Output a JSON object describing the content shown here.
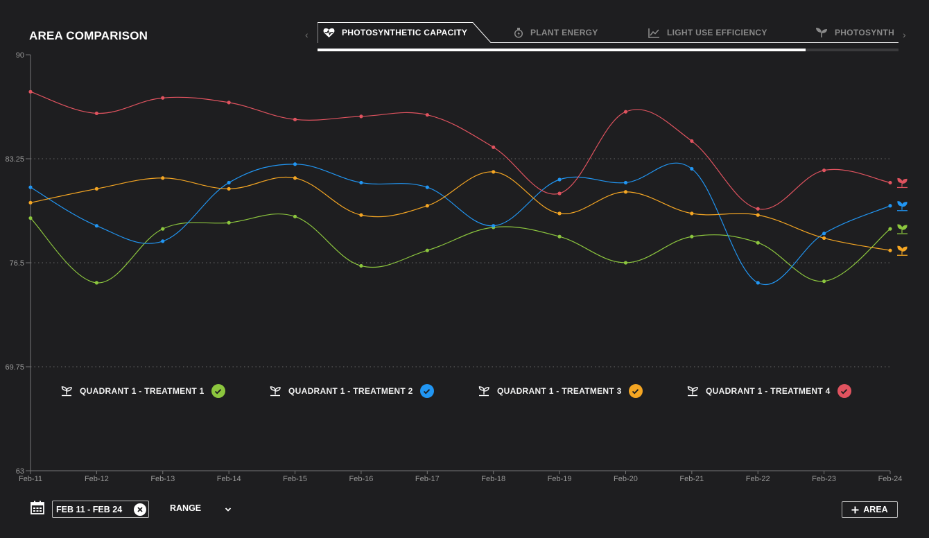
{
  "page": {
    "title": "AREA COMPARISON"
  },
  "tabs": [
    {
      "label": "PHOTOSYNTHETIC CAPACITY",
      "icon": "heart-pulse-icon",
      "active": true
    },
    {
      "label": "PLANT ENERGY",
      "icon": "energy-drop-icon",
      "active": false
    },
    {
      "label": "LIGHT USE EFFICIENCY",
      "icon": "line-chart-icon",
      "active": false
    },
    {
      "label": "PHOTOSYNTH",
      "icon": "sprout-icon",
      "active": false
    }
  ],
  "tab_scroll_progress": 0.84,
  "chart_data": {
    "type": "line",
    "x": [
      "Feb-11",
      "Feb-12",
      "Feb-13",
      "Feb-14",
      "Feb-15",
      "Feb-16",
      "Feb-17",
      "Feb-18",
      "Feb-19",
      "Feb-20",
      "Feb-21",
      "Feb-22",
      "Feb-23",
      "Feb-24"
    ],
    "ylim": [
      63,
      90
    ],
    "yticks": [
      "90",
      "83.25",
      "76.5",
      "69.75",
      "63"
    ],
    "grid": "dotted horizontal",
    "legend_position": "bottom",
    "series": [
      {
        "name": "QUADRANT 1 - TREATMENT 1",
        "color": "#8cc63e",
        "values": [
          79.4,
          75.2,
          78.7,
          79.1,
          79.5,
          76.3,
          77.3,
          78.8,
          78.2,
          76.5,
          78.2,
          77.8,
          75.3,
          78.7
        ]
      },
      {
        "name": "QUADRANT 1 - TREATMENT 2",
        "color": "#2196f3",
        "values": [
          81.4,
          78.9,
          77.9,
          81.7,
          82.9,
          81.7,
          81.4,
          78.9,
          81.9,
          81.7,
          82.6,
          75.2,
          78.4,
          80.2
        ]
      },
      {
        "name": "QUADRANT 1 - TREATMENT 3",
        "color": "#f5a623",
        "values": [
          80.4,
          81.3,
          82.0,
          81.3,
          82.0,
          79.6,
          80.2,
          82.4,
          79.7,
          81.1,
          79.7,
          79.6,
          78.1,
          77.3
        ]
      },
      {
        "name": "QUADRANT 1 - TREATMENT 4",
        "color": "#e0535f",
        "values": [
          87.6,
          86.2,
          87.2,
          86.9,
          85.8,
          86.0,
          86.1,
          84.0,
          81.0,
          86.3,
          84.4,
          80.0,
          82.5,
          81.7
        ]
      }
    ]
  },
  "footer": {
    "date_range": "FEB 11 - FEB 24",
    "range_label": "RANGE",
    "add_area_label": "AREA"
  }
}
